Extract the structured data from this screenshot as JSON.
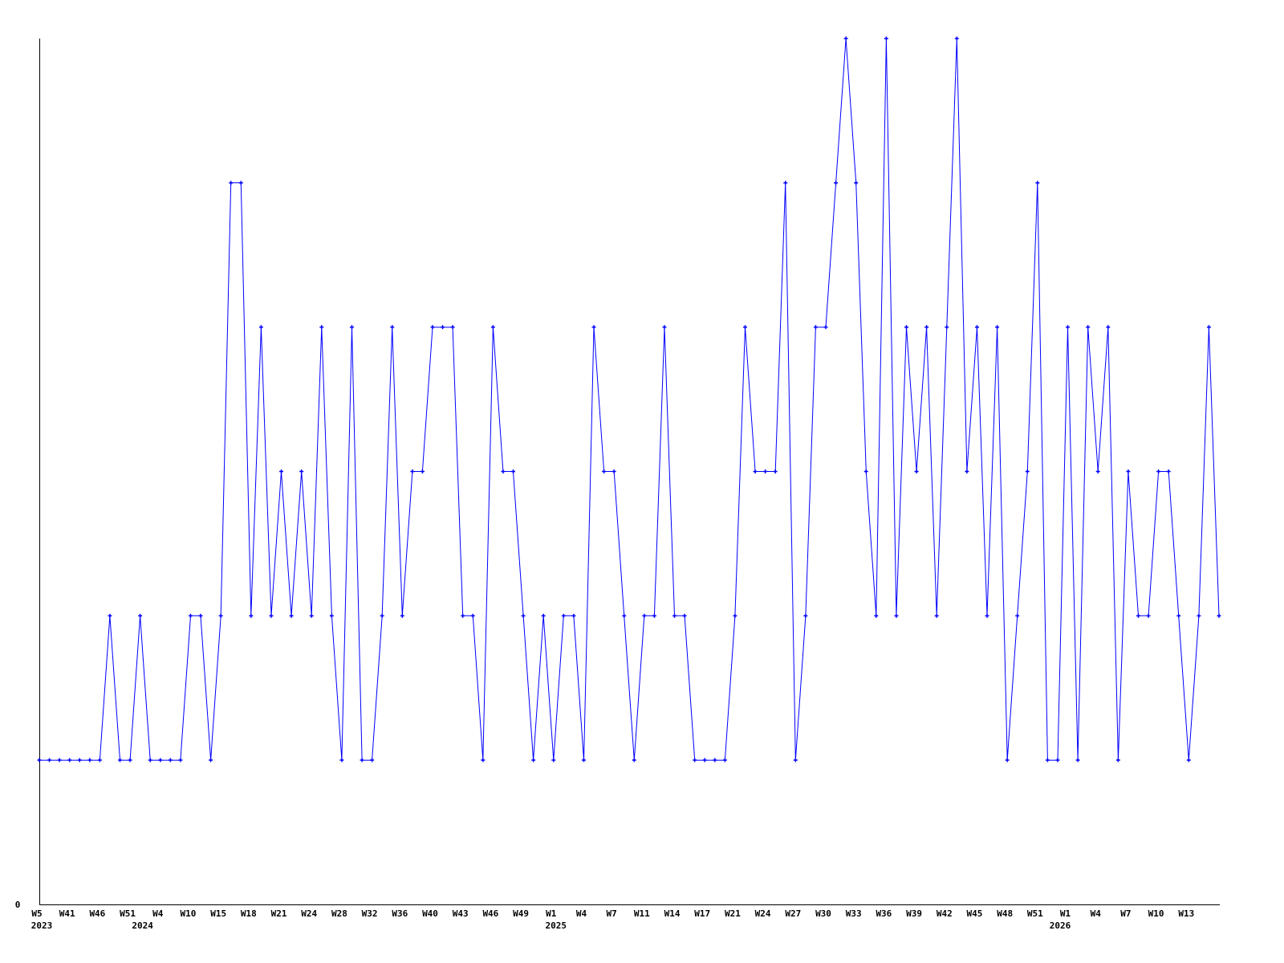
{
  "chart_data": {
    "type": "line",
    "title": "",
    "xlabel": "",
    "ylabel": "",
    "ylim": [
      0,
      6
    ],
    "y_tick_labels": [
      {
        "value": 0,
        "label": "0"
      }
    ],
    "grid": false,
    "line_color": "#0000ff",
    "axis_color": "#000000",
    "markers": true,
    "values": [
      1,
      1,
      1,
      1,
      1,
      1,
      1,
      2,
      1,
      1,
      2,
      1,
      1,
      1,
      1,
      2,
      2,
      1,
      2,
      5,
      5,
      2,
      4,
      2,
      3,
      2,
      3,
      2,
      4,
      2,
      1,
      4,
      1,
      1,
      2,
      4,
      2,
      3,
      3,
      4,
      4,
      4,
      2,
      2,
      1,
      4,
      3,
      3,
      2,
      1,
      2,
      1,
      2,
      2,
      1,
      4,
      3,
      3,
      2,
      1,
      2,
      2,
      4,
      2,
      2,
      1,
      1,
      1,
      1,
      2,
      4,
      3,
      3,
      3,
      5,
      1,
      2,
      4,
      4,
      5,
      6,
      5,
      3,
      2,
      6,
      2,
      4,
      3,
      4,
      2,
      4,
      6,
      3,
      4,
      2,
      4,
      1,
      2,
      3,
      5,
      1,
      1,
      4,
      1,
      4,
      3,
      4,
      1,
      3,
      2,
      2,
      3,
      3,
      2,
      1,
      2,
      4,
      2
    ],
    "x_tick_labels": [
      {
        "index": 0,
        "label": "W5"
      },
      {
        "index": 3,
        "label": "W41"
      },
      {
        "index": 6,
        "label": "W46"
      },
      {
        "index": 9,
        "label": "W51"
      },
      {
        "index": 12,
        "label": "W4"
      },
      {
        "index": 15,
        "label": "W10"
      },
      {
        "index": 18,
        "label": "W15"
      },
      {
        "index": 21,
        "label": "W18"
      },
      {
        "index": 24,
        "label": "W21"
      },
      {
        "index": 27,
        "label": "W24"
      },
      {
        "index": 30,
        "label": "W28"
      },
      {
        "index": 33,
        "label": "W32"
      },
      {
        "index": 36,
        "label": "W36"
      },
      {
        "index": 39,
        "label": "W40"
      },
      {
        "index": 42,
        "label": "W43"
      },
      {
        "index": 45,
        "label": "W46"
      },
      {
        "index": 48,
        "label": "W49"
      },
      {
        "index": 51,
        "label": "W1"
      },
      {
        "index": 54,
        "label": "W4"
      },
      {
        "index": 57,
        "label": "W7"
      },
      {
        "index": 60,
        "label": "W11"
      },
      {
        "index": 63,
        "label": "W14"
      },
      {
        "index": 66,
        "label": "W17"
      },
      {
        "index": 69,
        "label": "W21"
      },
      {
        "index": 72,
        "label": "W24"
      },
      {
        "index": 75,
        "label": "W27"
      },
      {
        "index": 78,
        "label": "W30"
      },
      {
        "index": 81,
        "label": "W33"
      },
      {
        "index": 84,
        "label": "W36"
      },
      {
        "index": 87,
        "label": "W39"
      },
      {
        "index": 90,
        "label": "W42"
      },
      {
        "index": 93,
        "label": "W45"
      },
      {
        "index": 96,
        "label": "W48"
      },
      {
        "index": 99,
        "label": "W51"
      },
      {
        "index": 102,
        "label": "W1"
      },
      {
        "index": 105,
        "label": "W4"
      },
      {
        "index": 108,
        "label": "W7"
      },
      {
        "index": 111,
        "label": "W10"
      },
      {
        "index": 114,
        "label": "W13"
      }
    ],
    "year_labels": [
      {
        "index": 0,
        "label": "2023"
      },
      {
        "index": 10,
        "label": "2024"
      },
      {
        "index": 51,
        "label": "2025"
      },
      {
        "index": 101,
        "label": "2026"
      }
    ]
  }
}
